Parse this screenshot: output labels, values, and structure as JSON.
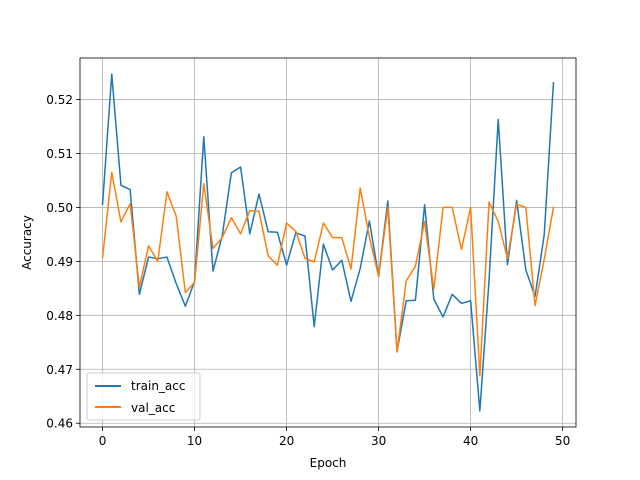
{
  "chart_data": {
    "type": "line",
    "xlabel": "Epoch",
    "ylabel": "Accuracy",
    "xlim": [
      -2.45,
      51.45
    ],
    "ylim": [
      0.4593,
      0.5277
    ],
    "xticks": [
      0,
      10,
      20,
      30,
      40,
      50
    ],
    "yticks": [
      0.46,
      0.47,
      0.48,
      0.49,
      0.5,
      0.51,
      0.52
    ],
    "grid": true,
    "legend_position": "lower-left",
    "x": [
      0,
      1,
      2,
      3,
      4,
      5,
      6,
      7,
      8,
      9,
      10,
      11,
      12,
      13,
      14,
      15,
      16,
      17,
      18,
      19,
      20,
      21,
      22,
      23,
      24,
      25,
      26,
      27,
      28,
      29,
      30,
      31,
      32,
      33,
      34,
      35,
      36,
      37,
      38,
      39,
      40,
      41,
      42,
      43,
      44,
      45,
      46,
      47,
      48,
      49
    ],
    "series": [
      {
        "name": "train_acc",
        "color": "#1f77b4",
        "values": [
          0.5006,
          0.5247,
          0.5041,
          0.5033,
          0.4839,
          0.4908,
          0.4905,
          0.4908,
          0.4859,
          0.4817,
          0.4863,
          0.5131,
          0.4882,
          0.4947,
          0.5064,
          0.5075,
          0.4951,
          0.5025,
          0.4955,
          0.4954,
          0.4893,
          0.4953,
          0.4947,
          0.4779,
          0.4932,
          0.4884,
          0.4902,
          0.4826,
          0.4887,
          0.4975,
          0.4872,
          0.5012,
          0.4733,
          0.4827,
          0.4828,
          0.5005,
          0.483,
          0.4797,
          0.4839,
          0.4822,
          0.4827,
          0.4623,
          0.4865,
          0.5163,
          0.4894,
          0.5013,
          0.4884,
          0.4835,
          0.495,
          0.5231
        ]
      },
      {
        "name": "val_acc",
        "color": "#ff7f0e",
        "values": [
          0.4907,
          0.5065,
          0.4973,
          0.5007,
          0.4852,
          0.4929,
          0.49,
          0.5029,
          0.4984,
          0.4842,
          0.4861,
          0.5044,
          0.4924,
          0.4944,
          0.4981,
          0.4951,
          0.4994,
          0.4993,
          0.491,
          0.4893,
          0.4971,
          0.4956,
          0.4906,
          0.4899,
          0.4971,
          0.4944,
          0.4944,
          0.4886,
          0.5036,
          0.4945,
          0.4872,
          0.5,
          0.4732,
          0.4864,
          0.4891,
          0.4974,
          0.4848,
          0.5,
          0.5,
          0.4922,
          0.5,
          0.4688,
          0.501,
          0.4974,
          0.4905,
          0.5006,
          0.5,
          0.4818,
          0.4904,
          0.5
        ]
      }
    ]
  }
}
